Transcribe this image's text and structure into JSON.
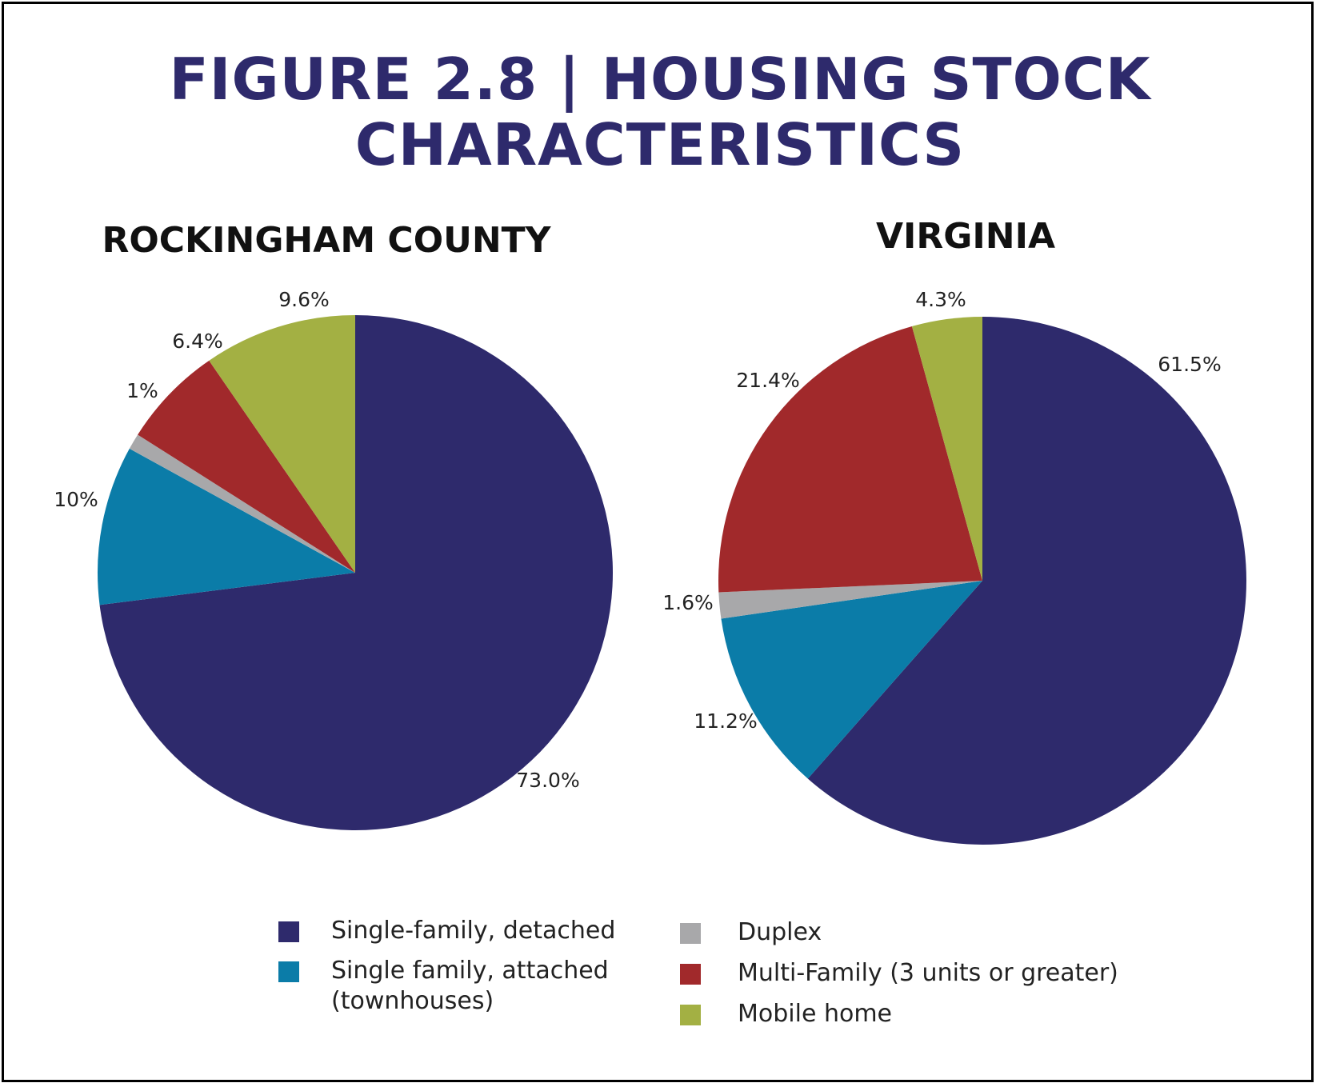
{
  "title": {
    "line1": "FIGURE 2.8 | HOUSING STOCK",
    "line2": "CHARACTERISTICS"
  },
  "colors": {
    "title": "#2e2a6c",
    "border": "#000000"
  },
  "legend": {
    "items": [
      {
        "label": "Single-family, detached",
        "color": "#2e2a6c"
      },
      {
        "label": "Single family, attached",
        "label2": "(townhouses)",
        "color": "#0b7ca8"
      },
      {
        "label": "Duplex",
        "color": "#a8a8aa"
      },
      {
        "label": "Multi-Family (3 units or greater)",
        "color": "#a1292b"
      },
      {
        "label": "Mobile home",
        "color": "#a3b043"
      }
    ]
  },
  "chart_data": [
    {
      "type": "pie",
      "title": "ROCKINGHAM COUNTY",
      "categories": [
        "Single-family, detached",
        "Single family, attached (townhouses)",
        "Duplex",
        "Multi-Family (3 units or greater)",
        "Mobile home"
      ],
      "values": [
        73.0,
        10,
        1,
        6.4,
        9.6
      ],
      "labels": [
        "73.0%",
        "10%",
        "1%",
        "6.4%",
        "9.6%"
      ],
      "colors": [
        "#2e2a6c",
        "#0b7ca8",
        "#a8a8aa",
        "#a1292b",
        "#a3b043"
      ]
    },
    {
      "type": "pie",
      "title": "VIRGINIA",
      "categories": [
        "Single-family, detached",
        "Single family, attached (townhouses)",
        "Duplex",
        "Multi-Family (3 units or greater)",
        "Mobile home"
      ],
      "values": [
        61.5,
        11.2,
        1.6,
        21.4,
        4.3
      ],
      "labels": [
        "61.5%",
        "11.2%",
        "1.6%",
        "21.4%",
        "4.3%"
      ],
      "colors": [
        "#2e2a6c",
        "#0b7ca8",
        "#a8a8aa",
        "#a1292b",
        "#a3b043"
      ]
    }
  ]
}
